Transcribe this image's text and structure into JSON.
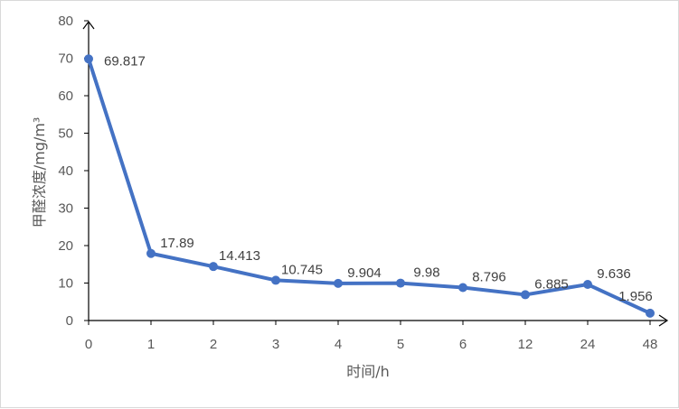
{
  "chart_data": {
    "type": "line",
    "title": "",
    "xlabel": "时间/h",
    "ylabel": "甲醛浓度/mg/m³",
    "categories": [
      "0",
      "1",
      "2",
      "3",
      "4",
      "5",
      "6",
      "12",
      "24",
      "48"
    ],
    "series": [
      {
        "values": [
          69.817,
          17.89,
          14.413,
          10.745,
          9.904,
          9.98,
          8.796,
          6.885,
          9.636,
          1.956
        ],
        "labels": [
          "69.817",
          "17.89",
          "14.413",
          "10.745",
          "9.904",
          "9.98",
          "8.796",
          "6.885",
          "9.636",
          "1.956"
        ],
        "color": "#4472c4"
      }
    ],
    "ylim": [
      0,
      80
    ],
    "yticks": [
      "0",
      "10",
      "20",
      "30",
      "40",
      "50",
      "60",
      "70",
      "80"
    ],
    "grid": false,
    "legend": "none",
    "axis_color": "#000000"
  }
}
